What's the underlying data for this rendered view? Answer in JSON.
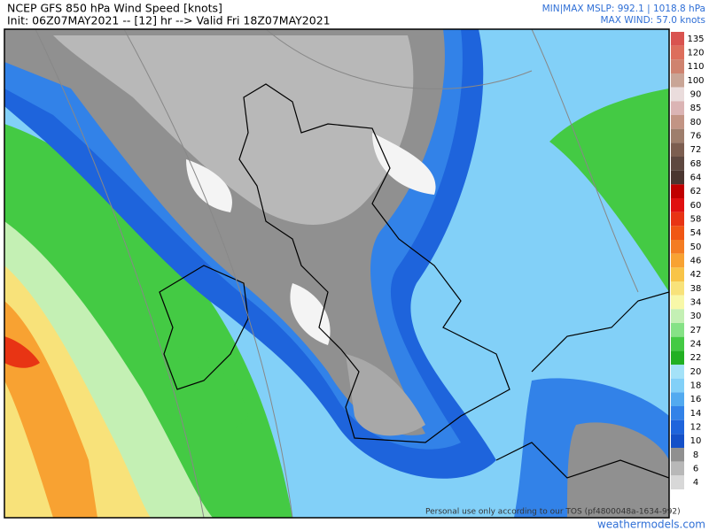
{
  "header": {
    "title": "NCEP GFS 850 hPa Wind Speed [knots]",
    "subtitle": "Init: 06Z07MAY2021 -- [12] hr --> Valid Fri 18Z07MAY2021",
    "mslp": "MIN|MAX MSLP: 992.1 | 1018.8 hPa",
    "max_wind": "MAX WIND: 57.0 knots"
  },
  "legend": [
    {
      "label": "135",
      "color": "#d9534f"
    },
    {
      "label": "120",
      "color": "#dd6e5c"
    },
    {
      "label": "110",
      "color": "#cf836f"
    },
    {
      "label": "100",
      "color": "#c9a596"
    },
    {
      "label": "90",
      "color": "#eadcdc"
    },
    {
      "label": "85",
      "color": "#dbb4b4"
    },
    {
      "label": "80",
      "color": "#c29484"
    },
    {
      "label": "76",
      "color": "#9e7e6c"
    },
    {
      "label": "72",
      "color": "#7c5e50"
    },
    {
      "label": "68",
      "color": "#5e4840"
    },
    {
      "label": "64",
      "color": "#4a3630"
    },
    {
      "label": "62",
      "color": "#c00000"
    },
    {
      "label": "60",
      "color": "#e01010"
    },
    {
      "label": "58",
      "color": "#e83414"
    },
    {
      "label": "54",
      "color": "#f05614"
    },
    {
      "label": "50",
      "color": "#f47c22"
    },
    {
      "label": "46",
      "color": "#f8a232"
    },
    {
      "label": "42",
      "color": "#f8c448"
    },
    {
      "label": "38",
      "color": "#f8e27a"
    },
    {
      "label": "34",
      "color": "#f8f8a8"
    },
    {
      "label": "30",
      "color": "#c4f0b4"
    },
    {
      "label": "27",
      "color": "#86e286"
    },
    {
      "label": "24",
      "color": "#44ca44"
    },
    {
      "label": "22",
      "color": "#22b022"
    },
    {
      "label": "20",
      "color": "#a4e2f8"
    },
    {
      "label": "18",
      "color": "#82d0f8"
    },
    {
      "label": "16",
      "color": "#52aaf0"
    },
    {
      "label": "14",
      "color": "#3282e8"
    },
    {
      "label": "12",
      "color": "#1e64dc"
    },
    {
      "label": "10",
      "color": "#1450c8"
    },
    {
      "label": "8",
      "color": "#909090"
    },
    {
      "label": "6",
      "color": "#b8b8b8"
    },
    {
      "label": "4",
      "color": "#d8d8d8"
    }
  ],
  "footer": {
    "notice": "Personal use only according to our TOS (pf4800048a-1634-992)",
    "credit": "weathermodels.com"
  }
}
